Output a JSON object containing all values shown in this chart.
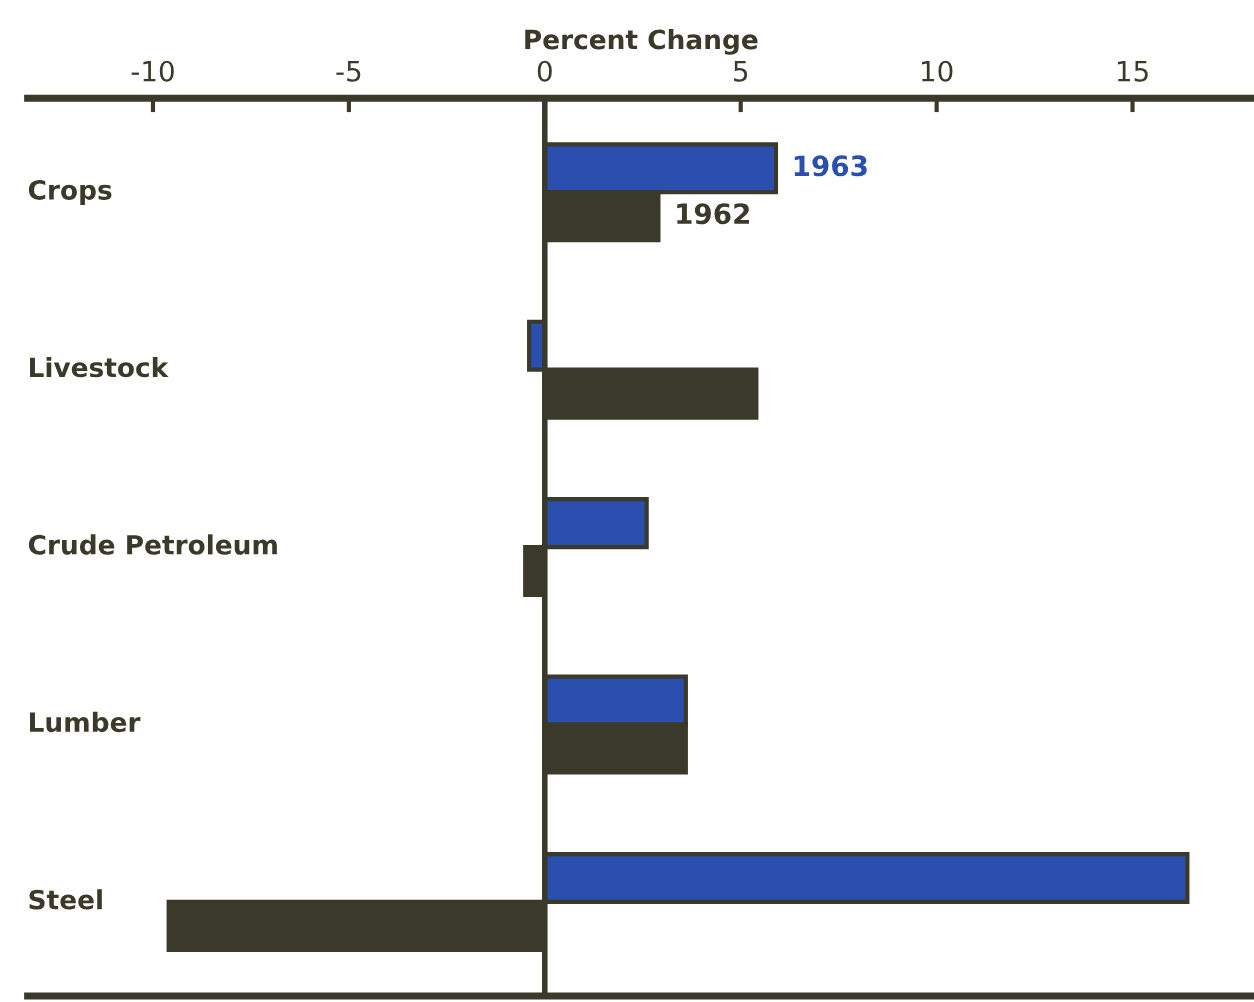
{
  "chart_data": {
    "type": "bar",
    "orientation": "horizontal",
    "xlabel": "Percent Change",
    "categories": [
      "Crops",
      "Livestock",
      "Crude Petroleum",
      "Lumber",
      "Steel"
    ],
    "series": [
      {
        "name": "1963",
        "color": "#2b4fae",
        "values": [
          5.9,
          -0.4,
          2.6,
          3.6,
          16.4
        ]
      },
      {
        "name": "1962",
        "color": "#3b3a2a",
        "values": [
          2.9,
          5.4,
          -0.5,
          3.6,
          -9.6
        ]
      }
    ],
    "xlim": [
      -13.2,
      18.1
    ],
    "xticks": [
      -10,
      -5,
      0,
      5,
      10,
      15
    ],
    "ref_lines": [
      {
        "axis": "x",
        "value": 0,
        "color": "#3b3a2a"
      }
    ],
    "grid": false,
    "legend": false
  }
}
